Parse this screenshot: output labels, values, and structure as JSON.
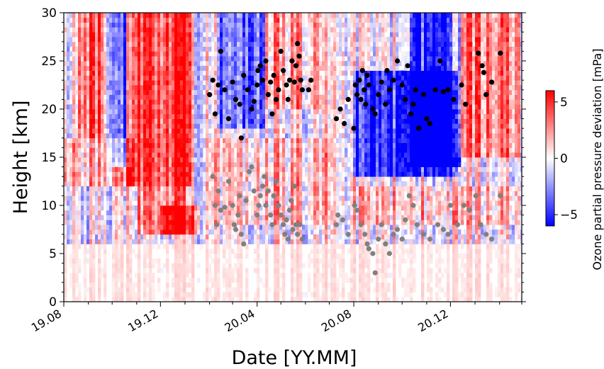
{
  "chart_data": {
    "type": "heatmap",
    "xlabel": "Date [YY.MM]",
    "ylabel": "Height [km]",
    "x_ticks": [
      "19.08",
      "19.12",
      "20.04",
      "20.08",
      "20.12"
    ],
    "x_range_months": [
      "2019-08",
      "2021-03"
    ],
    "y_ticks": [
      "0",
      "5",
      "10",
      "15",
      "20",
      "25",
      "30"
    ],
    "ylim": [
      0,
      30
    ],
    "colorbar": {
      "label": "Ozone partial pressure deviation [mPa]",
      "ticks": [
        "5",
        "0",
        "−5"
      ],
      "tick_values": [
        5,
        0,
        -5
      ],
      "range": [
        -6,
        6
      ],
      "colormap": "bwr",
      "colors": {
        "low": "#0000ff",
        "mid": "#ffffff",
        "high": "#ff0000"
      }
    },
    "heatmap_features": [
      {
        "start": "2019-08-20",
        "end": "2019-09-20",
        "y_range": [
          17,
          30
        ],
        "value": 4
      },
      {
        "start": "2019-10-20",
        "end": "2020-01-10",
        "y_range": [
          12,
          30
        ],
        "value": 4.5
      },
      {
        "start": "2019-11-01",
        "end": "2020-01-01",
        "y_range": [
          7,
          12
        ],
        "value": 3
      },
      {
        "start": "2019-08-01",
        "end": "2019-10-30",
        "y_range": [
          12,
          17
        ],
        "value": 2
      },
      {
        "start": "2019-12-01",
        "end": "2020-01-20",
        "y_range": [
          7,
          10
        ],
        "value": 4
      },
      {
        "start": "2019-10-01",
        "end": "2019-10-25",
        "y_range": [
          14,
          30
        ],
        "value": -4
      },
      {
        "start": "2020-02-10",
        "end": "2020-04-10",
        "y_range": [
          18,
          30
        ],
        "value": -3
      },
      {
        "start": "2020-04-10",
        "end": "2020-06-20",
        "y_range": [
          20,
          30
        ],
        "value": 2
      },
      {
        "start": "2020-02-01",
        "end": "2020-07-01",
        "y_range": [
          8,
          17
        ],
        "value": 1.5
      },
      {
        "start": "2020-08-01",
        "end": "2020-12-10",
        "y_range": [
          13,
          24
        ],
        "value": -5
      },
      {
        "start": "2020-10-10",
        "end": "2020-12-15",
        "y_range": [
          14,
          30
        ],
        "value": -5
      },
      {
        "start": "2020-12-01",
        "end": "2021-02-28",
        "y_range": [
          15,
          30
        ],
        "value": 3
      },
      {
        "start": "2020-08-01",
        "end": "2021-02-28",
        "y_range": [
          8,
          12
        ],
        "value": 1.5
      },
      {
        "start": "2019-08-01",
        "end": "2021-02-28",
        "y_range": [
          0,
          6
        ],
        "value": 0.5
      }
    ],
    "series": [
      {
        "color": "#000000",
        "points": [
          [
            "2020-02-15",
            26.0
          ],
          [
            "2020-02-05",
            23.0
          ],
          [
            "2020-02-01",
            21.5
          ],
          [
            "2020-02-08",
            19.5
          ],
          [
            "2020-02-12",
            22.5
          ],
          [
            "2020-02-20",
            22.0
          ],
          [
            "2020-02-25",
            19.0
          ],
          [
            "2020-03-01",
            22.8
          ],
          [
            "2020-03-05",
            21.0
          ],
          [
            "2020-03-10",
            20.5
          ],
          [
            "2020-03-12",
            17.0
          ],
          [
            "2020-03-15",
            23.5
          ],
          [
            "2020-03-20",
            22.0
          ],
          [
            "2020-03-25",
            20.0
          ],
          [
            "2020-04-01",
            22.5
          ],
          [
            "2020-04-05",
            24.5
          ],
          [
            "2020-04-08",
            23.0
          ],
          [
            "2020-04-12",
            25.0
          ],
          [
            "2020-04-15",
            21.5
          ],
          [
            "2020-04-18",
            22.8
          ],
          [
            "2020-04-22",
            23.5
          ],
          [
            "2020-04-25",
            21.0
          ],
          [
            "2020-04-28",
            22.0
          ],
          [
            "2020-05-01",
            26.0
          ],
          [
            "2020-05-04",
            24.0
          ],
          [
            "2020-05-08",
            22.5
          ],
          [
            "2020-05-12",
            23.0
          ],
          [
            "2020-05-15",
            25.0
          ],
          [
            "2020-05-18",
            22.8
          ],
          [
            "2020-05-20",
            24.5
          ],
          [
            "2020-05-22",
            26.8
          ],
          [
            "2020-05-24",
            25.5
          ],
          [
            "2020-05-26",
            23.0
          ],
          [
            "2020-05-28",
            22.0
          ],
          [
            "2020-06-05",
            22.0
          ],
          [
            "2020-06-08",
            23.0
          ],
          [
            "2020-04-20",
            19.5
          ],
          [
            "2020-05-10",
            21.0
          ],
          [
            "2020-03-28",
            20.8
          ],
          [
            "2020-04-02",
            24.0
          ],
          [
            "2020-07-10",
            19.0
          ],
          [
            "2020-07-15",
            20.0
          ],
          [
            "2020-07-20",
            18.5
          ],
          [
            "2020-07-25",
            21.0
          ],
          [
            "2020-08-01",
            18.0
          ],
          [
            "2020-08-03",
            22.5
          ],
          [
            "2020-08-05",
            21.5
          ],
          [
            "2020-08-08",
            23.0
          ],
          [
            "2020-08-10",
            21.0
          ],
          [
            "2020-08-12",
            24.0
          ],
          [
            "2020-08-14",
            22.0
          ],
          [
            "2020-08-16",
            20.5
          ],
          [
            "2020-08-18",
            23.5
          ],
          [
            "2020-08-20",
            22.5
          ],
          [
            "2020-08-25",
            20.0
          ],
          [
            "2020-08-28",
            19.5
          ],
          [
            "2020-09-01",
            21.5
          ],
          [
            "2020-09-05",
            22.8
          ],
          [
            "2020-09-10",
            20.5
          ],
          [
            "2020-09-12",
            24.0
          ],
          [
            "2020-09-15",
            22.0
          ],
          [
            "2020-09-20",
            23.0
          ],
          [
            "2020-09-25",
            25.0
          ],
          [
            "2020-10-01",
            22.5
          ],
          [
            "2020-10-05",
            21.0
          ],
          [
            "2020-10-08",
            24.5
          ],
          [
            "2020-10-12",
            19.5
          ],
          [
            "2020-10-15",
            20.5
          ],
          [
            "2020-10-18",
            22.0
          ],
          [
            "2020-10-22",
            18.0
          ],
          [
            "2020-10-28",
            21.5
          ],
          [
            "2020-11-01",
            19.0
          ],
          [
            "2020-11-05",
            18.5
          ],
          [
            "2020-11-12",
            22.0
          ],
          [
            "2020-11-18",
            25.0
          ],
          [
            "2020-11-22",
            21.8
          ],
          [
            "2020-11-28",
            22.0
          ],
          [
            "2020-12-05",
            21.0
          ],
          [
            "2020-12-15",
            22.5
          ],
          [
            "2021-01-05",
            25.8
          ],
          [
            "2021-01-10",
            24.5
          ],
          [
            "2021-01-15",
            21.5
          ],
          [
            "2021-01-22",
            22.8
          ],
          [
            "2021-02-02",
            25.8
          ],
          [
            "2021-01-12",
            23.8
          ],
          [
            "2020-12-20",
            20.5
          ]
        ]
      },
      {
        "color": "#808080",
        "points": [
          [
            "2020-02-05",
            13.0
          ],
          [
            "2020-02-08",
            10.0
          ],
          [
            "2020-02-10",
            8.0
          ],
          [
            "2020-02-12",
            11.5
          ],
          [
            "2020-02-15",
            9.5
          ],
          [
            "2020-02-20",
            9.8
          ],
          [
            "2020-02-25",
            12.5
          ],
          [
            "2020-03-01",
            10.0
          ],
          [
            "2020-03-03",
            8.0
          ],
          [
            "2020-03-05",
            7.5
          ],
          [
            "2020-03-08",
            9.0
          ],
          [
            "2020-03-10",
            11.0
          ],
          [
            "2020-03-12",
            7.0
          ],
          [
            "2020-03-15",
            6.0
          ],
          [
            "2020-03-18",
            10.5
          ],
          [
            "2020-03-22",
            13.5
          ],
          [
            "2020-03-25",
            14.0
          ],
          [
            "2020-03-28",
            11.5
          ],
          [
            "2020-04-01",
            9.0
          ],
          [
            "2020-04-03",
            10.0
          ],
          [
            "2020-04-05",
            11.0
          ],
          [
            "2020-04-08",
            12.0
          ],
          [
            "2020-04-10",
            13.0
          ],
          [
            "2020-04-12",
            10.0
          ],
          [
            "2020-04-15",
            11.5
          ],
          [
            "2020-04-18",
            9.0
          ],
          [
            "2020-04-20",
            8.0
          ],
          [
            "2020-04-22",
            11.0
          ],
          [
            "2020-04-25",
            12.5
          ],
          [
            "2020-04-28",
            10.0
          ],
          [
            "2020-05-01",
            9.0
          ],
          [
            "2020-05-04",
            8.0
          ],
          [
            "2020-05-06",
            7.0
          ],
          [
            "2020-05-08",
            8.5
          ],
          [
            "2020-05-10",
            6.5
          ],
          [
            "2020-05-12",
            9.5
          ],
          [
            "2020-05-14",
            10.5
          ],
          [
            "2020-05-16",
            7.5
          ],
          [
            "2020-05-18",
            12.0
          ],
          [
            "2020-05-20",
            8.0
          ],
          [
            "2020-05-22",
            7.0
          ],
          [
            "2020-05-25",
            8.0
          ],
          [
            "2020-05-28",
            6.5
          ],
          [
            "2020-07-10",
            8.0
          ],
          [
            "2020-07-12",
            9.0
          ],
          [
            "2020-07-18",
            8.5
          ],
          [
            "2020-07-25",
            7.0
          ],
          [
            "2020-08-02",
            10.0
          ],
          [
            "2020-08-05",
            9.5
          ],
          [
            "2020-08-10",
            8.0
          ],
          [
            "2020-08-15",
            7.0
          ],
          [
            "2020-08-18",
            6.0
          ],
          [
            "2020-08-20",
            5.5
          ],
          [
            "2020-08-25",
            5.0
          ],
          [
            "2020-08-28",
            3.0
          ],
          [
            "2020-09-01",
            6.5
          ],
          [
            "2020-09-05",
            8.0
          ],
          [
            "2020-09-10",
            6.0
          ],
          [
            "2020-09-15",
            5.0
          ],
          [
            "2020-09-20",
            7.0
          ],
          [
            "2020-09-25",
            7.5
          ],
          [
            "2020-10-01",
            6.5
          ],
          [
            "2020-10-05",
            8.5
          ],
          [
            "2020-10-10",
            11.0
          ],
          [
            "2020-10-15",
            10.0
          ],
          [
            "2020-10-20",
            8.0
          ],
          [
            "2020-10-28",
            7.0
          ],
          [
            "2020-11-05",
            6.5
          ],
          [
            "2020-11-15",
            8.0
          ],
          [
            "2020-11-22",
            7.5
          ],
          [
            "2020-12-01",
            10.0
          ],
          [
            "2020-12-10",
            8.0
          ],
          [
            "2020-12-18",
            10.0
          ],
          [
            "2020-12-25",
            9.5
          ],
          [
            "2021-01-02",
            11.0
          ],
          [
            "2021-01-08",
            8.0
          ],
          [
            "2021-01-15",
            7.0
          ],
          [
            "2021-01-22",
            6.5
          ],
          [
            "2021-02-02",
            11.0
          ],
          [
            "2020-11-28",
            7.0
          ]
        ]
      }
    ]
  }
}
